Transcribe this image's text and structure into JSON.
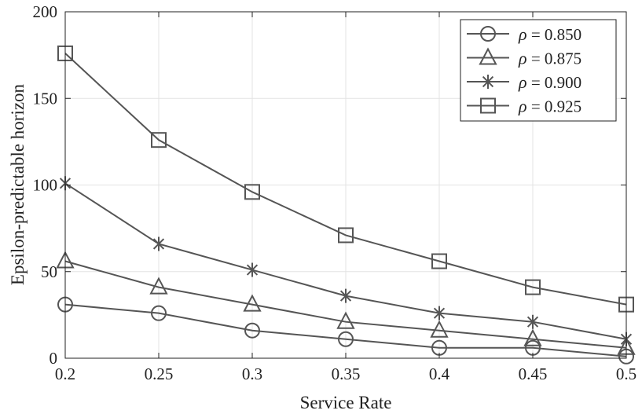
{
  "chart_data": {
    "type": "line",
    "title": "",
    "xlabel": "Service Rate",
    "ylabel": "Epsilon-predictable horizon",
    "x": [
      0.2,
      0.25,
      0.3,
      0.35,
      0.4,
      0.45,
      0.5
    ],
    "x_tick_labels": [
      "0.2",
      "0.25",
      "0.3",
      "0.35",
      "0.4",
      "0.45",
      "0.5"
    ],
    "y_ticks": [
      0,
      50,
      100,
      150,
      200
    ],
    "y_tick_labels": [
      "0",
      "50",
      "100",
      "150",
      "200"
    ],
    "xlim": [
      0.2,
      0.5
    ],
    "ylim": [
      0,
      200
    ],
    "grid": true,
    "legend_position": "top-right",
    "line_color": "#555555",
    "series": [
      {
        "name": "ρ = 0.850",
        "symbol": "ρ",
        "eq": " = 0.850",
        "marker": "circle",
        "values": [
          31,
          26,
          16,
          11,
          6,
          6,
          1
        ]
      },
      {
        "name": "ρ = 0.875",
        "symbol": "ρ",
        "eq": " = 0.875",
        "marker": "triangle",
        "values": [
          56,
          41,
          31,
          21,
          16,
          11,
          6
        ]
      },
      {
        "name": "ρ = 0.900",
        "symbol": "ρ",
        "eq": " = 0.900",
        "marker": "asterisk",
        "values": [
          101,
          66,
          51,
          36,
          26,
          21,
          11
        ]
      },
      {
        "name": "ρ = 0.925",
        "symbol": "ρ",
        "eq": " = 0.925",
        "marker": "square",
        "values": [
          176,
          126,
          96,
          71,
          56,
          41,
          31
        ]
      }
    ]
  }
}
